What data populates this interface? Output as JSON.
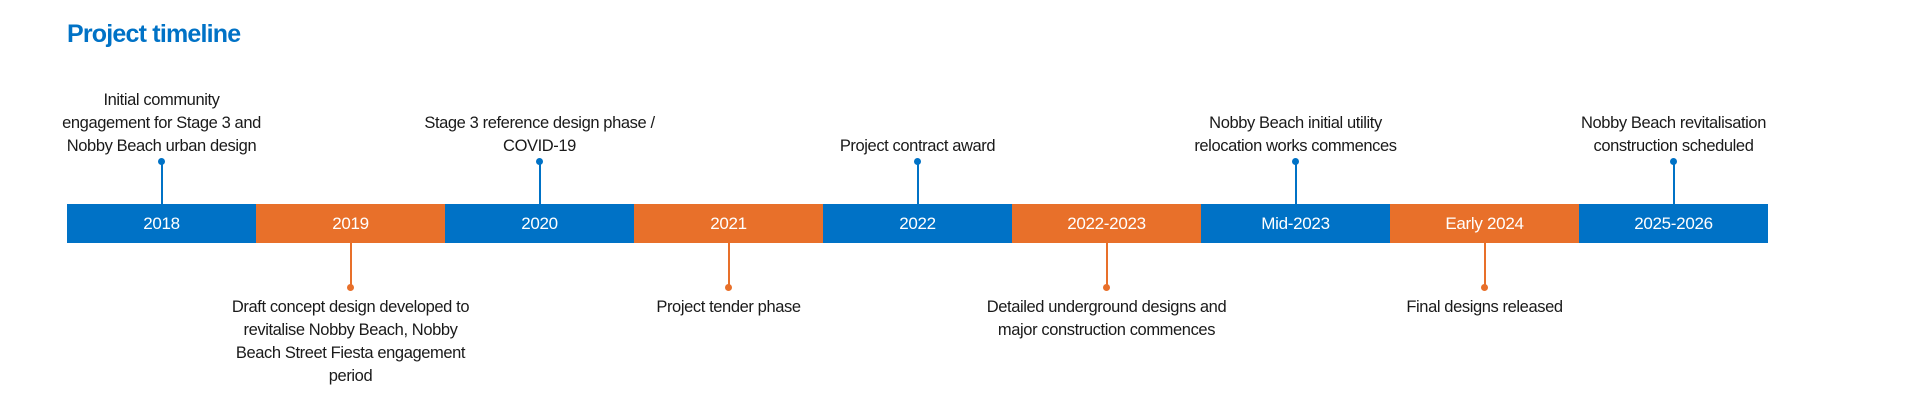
{
  "title": "Project timeline",
  "colors": {
    "blue": "#0072c6",
    "orange": "#e8702a"
  },
  "segments": [
    {
      "label": "2018",
      "color": "blue",
      "event": "Initial community engagement for Stage 3 and Nobby Beach urban design",
      "position": "above"
    },
    {
      "label": "2019",
      "color": "orange",
      "event": "Draft concept design developed to revitalise Nobby Beach, Nobby Beach Street Fiesta engagement period",
      "position": "below"
    },
    {
      "label": "2020",
      "color": "blue",
      "event": "Stage 3 reference design phase / COVID-19",
      "position": "above"
    },
    {
      "label": "2021",
      "color": "orange",
      "event": "Project tender phase",
      "position": "below"
    },
    {
      "label": "2022",
      "color": "blue",
      "event": "Project contract award",
      "position": "above"
    },
    {
      "label": "2022-2023",
      "color": "orange",
      "event": "Detailed underground designs and major construction commences",
      "position": "below"
    },
    {
      "label": "Mid-2023",
      "color": "blue",
      "event": "Nobby Beach initial utility relocation works commences",
      "position": "above"
    },
    {
      "label": "Early 2024",
      "color": "orange",
      "event": "Final designs released",
      "position": "below"
    },
    {
      "label": "2025-2026",
      "color": "blue",
      "event": "Nobby Beach revitalisation construction scheduled",
      "position": "above"
    }
  ]
}
